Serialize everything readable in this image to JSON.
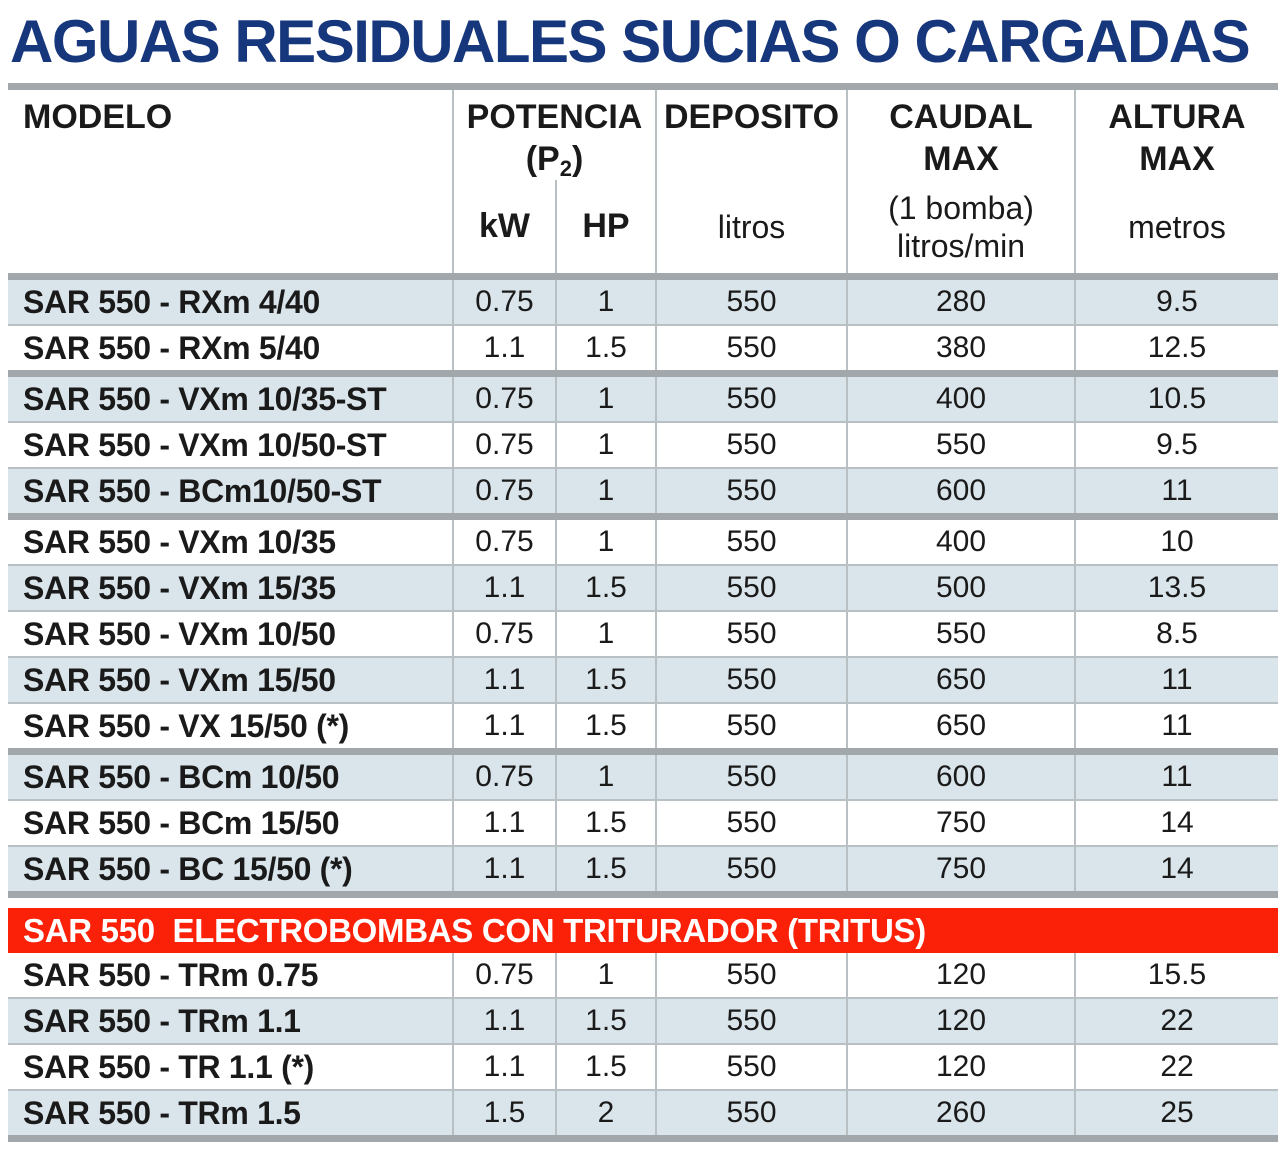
{
  "title": "AGUAS RESIDUALES SUCIAS O CARGADAS",
  "colors": {
    "title_navy": "#17377d",
    "banner_red": "#fb2008",
    "row_shade_blue": "#dae5eb",
    "separator_gray": "#a2a7ab",
    "grid_line_gray": "#b9c0c4"
  },
  "header": {
    "modelo": "MODELO",
    "potencia_line1": "POTENCIA",
    "potencia_p2_open": "(P",
    "potencia_p2_sub": "2",
    "potencia_p2_close": ")",
    "kw_unit": "kW",
    "hp_unit": "HP",
    "deposito": "DEPOSITO",
    "deposito_unit": "litros",
    "caudal_line1": "CAUDAL",
    "caudal_line2": "MAX",
    "caudal_note": "(1 bomba)",
    "caudal_unit": "litros/min",
    "altura_line1": "ALTURA",
    "altura_line2": "MAX",
    "altura_unit": "metros"
  },
  "sections": [
    {
      "type": "group",
      "rows": [
        {
          "model": "SAR 550 - RXm 4/40",
          "kw": "0.75",
          "hp": "1",
          "deposito": "550",
          "caudal": "280",
          "altura": "9.5"
        },
        {
          "model": "SAR 550 - RXm 5/40",
          "kw": "1.1",
          "hp": "1.5",
          "deposito": "550",
          "caudal": "380",
          "altura": "12.5"
        }
      ]
    },
    {
      "type": "group",
      "rows": [
        {
          "model": "SAR 550 - VXm 10/35-ST",
          "kw": "0.75",
          "hp": "1",
          "deposito": "550",
          "caudal": "400",
          "altura": "10.5"
        },
        {
          "model": "SAR 550 - VXm 10/50-ST",
          "kw": "0.75",
          "hp": "1",
          "deposito": "550",
          "caudal": "550",
          "altura": "9.5"
        },
        {
          "model": "SAR 550 - BCm10/50-ST",
          "kw": "0.75",
          "hp": "1",
          "deposito": "550",
          "caudal": "600",
          "altura": "11"
        }
      ]
    },
    {
      "type": "group",
      "rows": [
        {
          "model": "SAR 550 - VXm 10/35",
          "kw": "0.75",
          "hp": "1",
          "deposito": "550",
          "caudal": "400",
          "altura": "10"
        },
        {
          "model": "SAR 550 - VXm 15/35",
          "kw": "1.1",
          "hp": "1.5",
          "deposito": "550",
          "caudal": "500",
          "altura": "13.5"
        },
        {
          "model": "SAR 550 - VXm 10/50",
          "kw": "0.75",
          "hp": "1",
          "deposito": "550",
          "caudal": "550",
          "altura": "8.5"
        },
        {
          "model": "SAR 550 - VXm 15/50",
          "kw": "1.1",
          "hp": "1.5",
          "deposito": "550",
          "caudal": "650",
          "altura": "11"
        },
        {
          "model": "SAR 550 - VX 15/50 (*)",
          "kw": "1.1",
          "hp": "1.5",
          "deposito": "550",
          "caudal": "650",
          "altura": "11"
        }
      ]
    },
    {
      "type": "group",
      "rows": [
        {
          "model": "SAR 550 - BCm 10/50",
          "kw": "0.75",
          "hp": "1",
          "deposito": "550",
          "caudal": "600",
          "altura": "11"
        },
        {
          "model": "SAR 550 - BCm 15/50",
          "kw": "1.1",
          "hp": "1.5",
          "deposito": "550",
          "caudal": "750",
          "altura": "14"
        },
        {
          "model": "SAR 550 - BC 15/50 (*)",
          "kw": "1.1",
          "hp": "1.5",
          "deposito": "550",
          "caudal": "750",
          "altura": "14"
        }
      ]
    },
    {
      "type": "banner",
      "label": "SAR 550  ELECTROBOMBAS CON TRITURADOR (TRITUS)"
    },
    {
      "type": "group",
      "rows": [
        {
          "model": "SAR 550 - TRm 0.75",
          "kw": "0.75",
          "hp": "1",
          "deposito": "550",
          "caudal": "120",
          "altura": "15.5"
        },
        {
          "model": "SAR 550 - TRm 1.1",
          "kw": "1.1",
          "hp": "1.5",
          "deposito": "550",
          "caudal": "120",
          "altura": "22"
        },
        {
          "model": "SAR 550 - TR 1.1 (*)",
          "kw": "1.1",
          "hp": "1.5",
          "deposito": "550",
          "caudal": "120",
          "altura": "22"
        },
        {
          "model": "SAR 550 - TRm 1.5",
          "kw": "1.5",
          "hp": "2",
          "deposito": "550",
          "caudal": "260",
          "altura": "25"
        }
      ]
    }
  ]
}
